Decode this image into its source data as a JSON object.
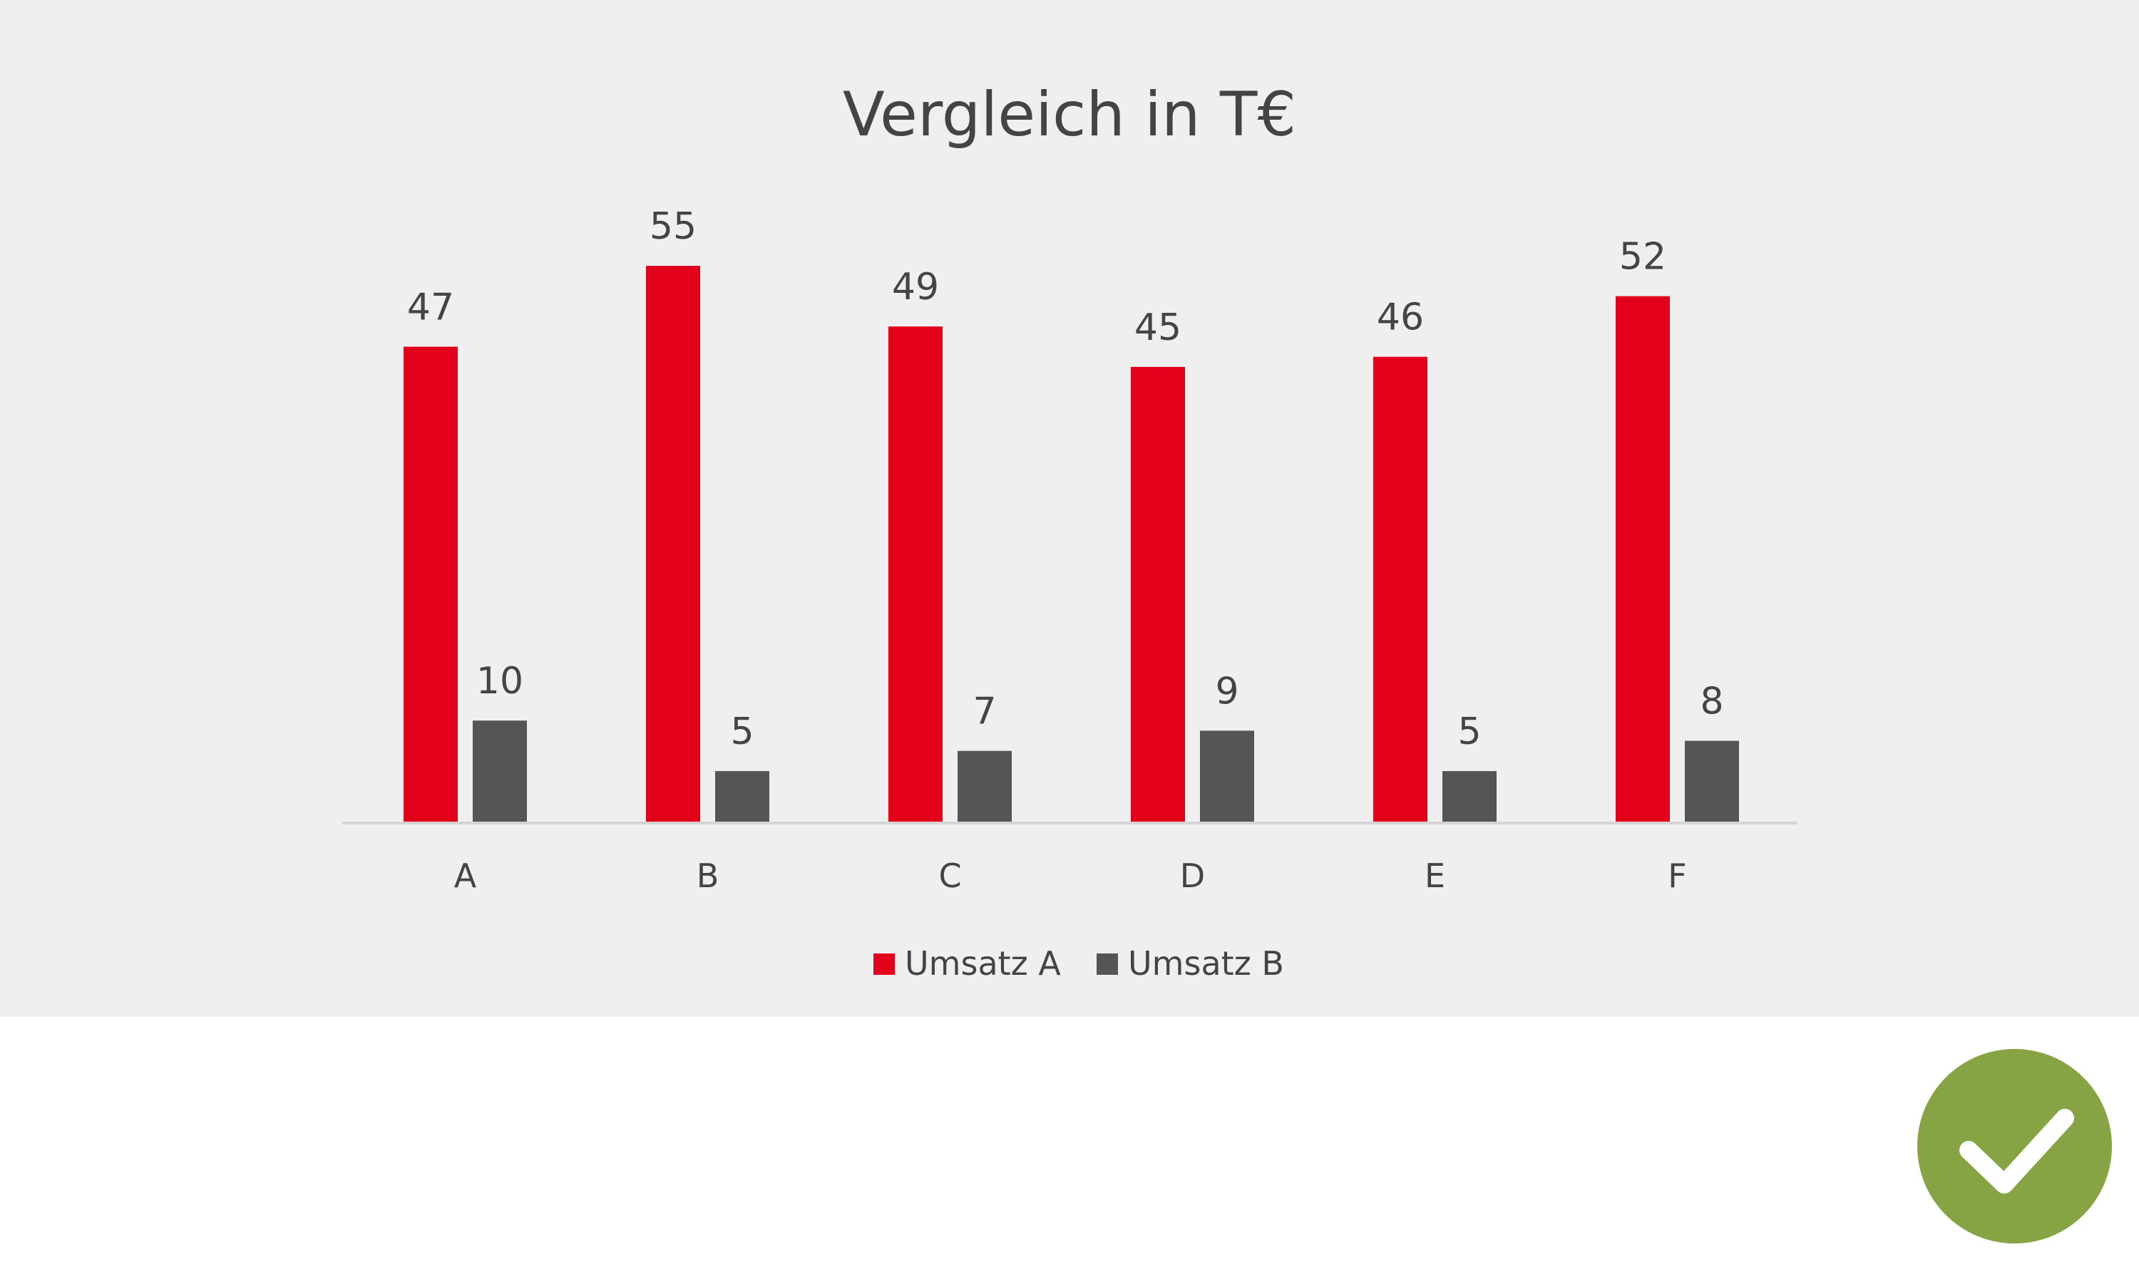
{
  "chart_data": {
    "type": "bar",
    "title": "Vergleich in T€",
    "categories": [
      "A",
      "B",
      "C",
      "D",
      "E",
      "F"
    ],
    "series": [
      {
        "name": "Umsatz A",
        "values": [
          47,
          55,
          49,
          45,
          46,
          52
        ],
        "color": "#e2001a"
      },
      {
        "name": "Umsatz B",
        "values": [
          10,
          5,
          7,
          9,
          5,
          8
        ],
        "color": "#555555"
      }
    ],
    "ylim": [
      0,
      55
    ],
    "grid": false,
    "data_labels": true,
    "legend_position": "bottom"
  },
  "badge": {
    "icon": "check-icon",
    "color": "#87a444"
  }
}
